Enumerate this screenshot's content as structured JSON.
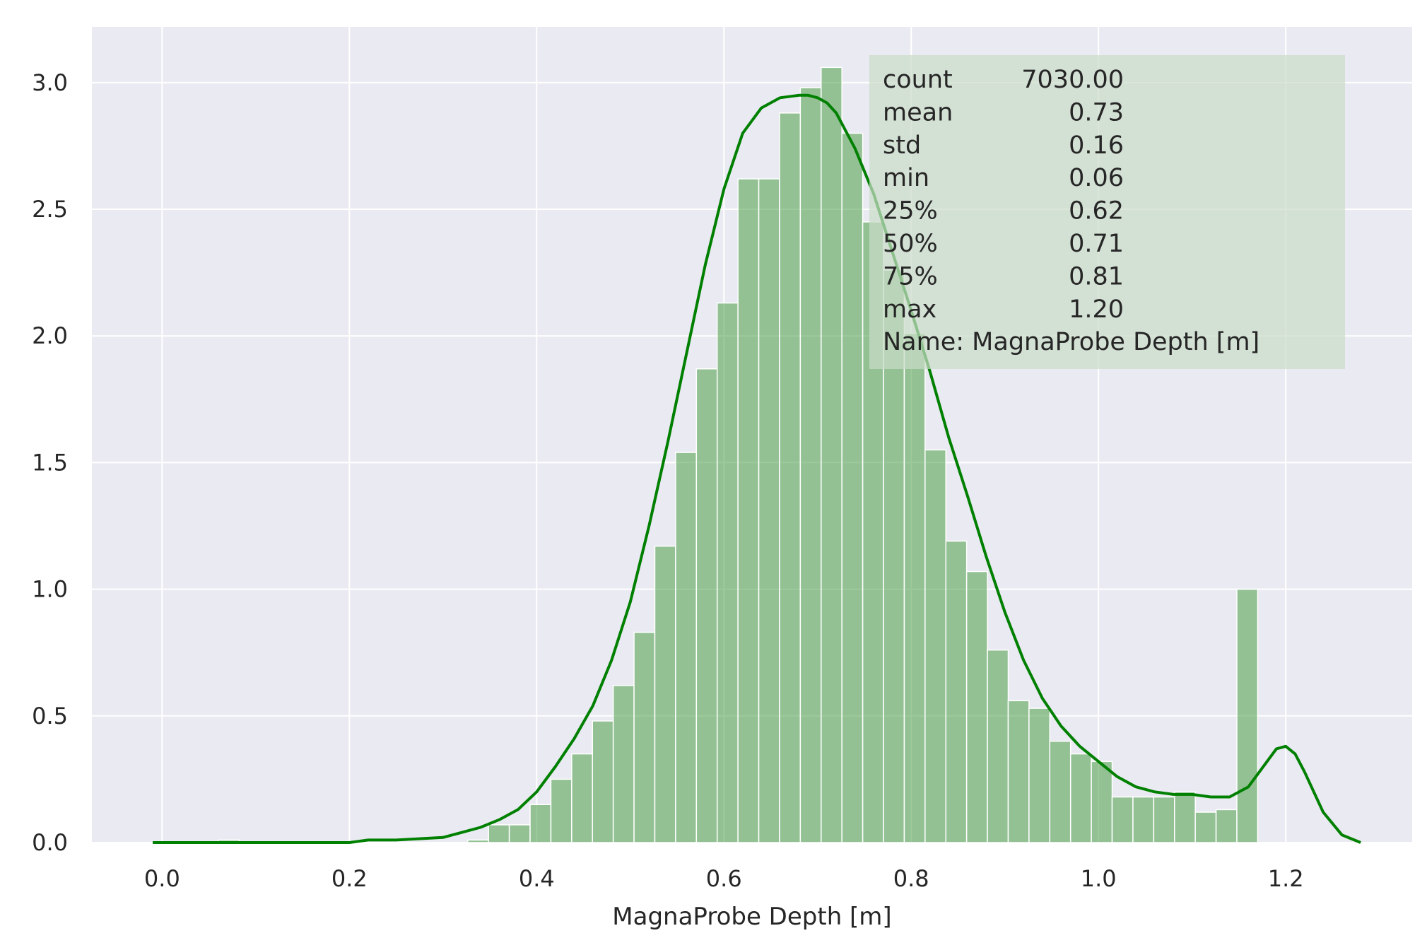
{
  "chart_data": {
    "type": "bar",
    "title": "",
    "xlabel": "MagnaProbe Depth [m]",
    "ylabel": "",
    "xlim": [
      -0.075,
      1.335
    ],
    "ylim": [
      0,
      3.22
    ],
    "grid": true,
    "xticks": [
      "0.0",
      "0.2",
      "0.4",
      "0.6",
      "0.8",
      "1.0",
      "1.2"
    ],
    "yticks": [
      "0.0",
      "0.5",
      "1.0",
      "1.5",
      "2.0",
      "2.5",
      "3.0"
    ],
    "colors": {
      "bars": "#4a9f47",
      "line": "#008000",
      "background": "#eaeaf2",
      "stats_box": "#c9dcc8"
    },
    "histogram": {
      "bin_start": 0.06,
      "bin_width": 0.0222,
      "values": [
        0.01,
        0,
        0,
        0,
        0,
        0,
        0,
        0,
        0,
        0,
        0,
        0,
        0.01,
        0.07,
        0.07,
        0.15,
        0.25,
        0.35,
        0.48,
        0.62,
        0.83,
        1.17,
        1.54,
        1.87,
        2.13,
        2.62,
        2.62,
        2.88,
        2.98,
        3.06,
        2.8,
        2.45,
        2.26,
        2.01,
        1.55,
        1.19,
        1.07,
        0.76,
        0.56,
        0.53,
        0.4,
        0.35,
        0.32,
        0.18,
        0.18,
        0.18,
        0.2,
        0.12,
        0.13,
        1.0
      ]
    },
    "kde": {
      "name": "",
      "x": [
        -0.01,
        0.05,
        0.1,
        0.15,
        0.2,
        0.22,
        0.25,
        0.3,
        0.32,
        0.34,
        0.36,
        0.38,
        0.4,
        0.42,
        0.44,
        0.46,
        0.48,
        0.5,
        0.52,
        0.54,
        0.56,
        0.58,
        0.6,
        0.62,
        0.64,
        0.66,
        0.68,
        0.69,
        0.7,
        0.71,
        0.72,
        0.74,
        0.76,
        0.78,
        0.8,
        0.82,
        0.84,
        0.86,
        0.88,
        0.9,
        0.92,
        0.94,
        0.96,
        0.98,
        1.0,
        1.02,
        1.04,
        1.06,
        1.08,
        1.1,
        1.12,
        1.14,
        1.16,
        1.18,
        1.19,
        1.2,
        1.21,
        1.22,
        1.24,
        1.26,
        1.28
      ],
      "y": [
        0,
        0,
        0,
        0,
        0,
        0.01,
        0.01,
        0.02,
        0.04,
        0.06,
        0.09,
        0.13,
        0.2,
        0.3,
        0.41,
        0.54,
        0.72,
        0.95,
        1.25,
        1.58,
        1.93,
        2.28,
        2.58,
        2.8,
        2.9,
        2.94,
        2.95,
        2.95,
        2.94,
        2.92,
        2.88,
        2.74,
        2.56,
        2.33,
        2.1,
        1.86,
        1.6,
        1.37,
        1.13,
        0.91,
        0.72,
        0.57,
        0.46,
        0.38,
        0.32,
        0.26,
        0.22,
        0.2,
        0.19,
        0.19,
        0.18,
        0.18,
        0.22,
        0.32,
        0.37,
        0.38,
        0.35,
        0.28,
        0.12,
        0.03,
        0
      ]
    }
  },
  "stats_box": {
    "lines": [
      {
        "label": "count",
        "value": "7030.00"
      },
      {
        "label": "mean",
        "value": "0.73"
      },
      {
        "label": "std",
        "value": "0.16"
      },
      {
        "label": "min",
        "value": "0.06"
      },
      {
        "label": "25%",
        "value": "0.62"
      },
      {
        "label": "50%",
        "value": "0.71"
      },
      {
        "label": "75%",
        "value": "0.81"
      },
      {
        "label": "max",
        "value": "1.20"
      }
    ],
    "name_line": "Name: MagnaProbe Depth [m]"
  }
}
